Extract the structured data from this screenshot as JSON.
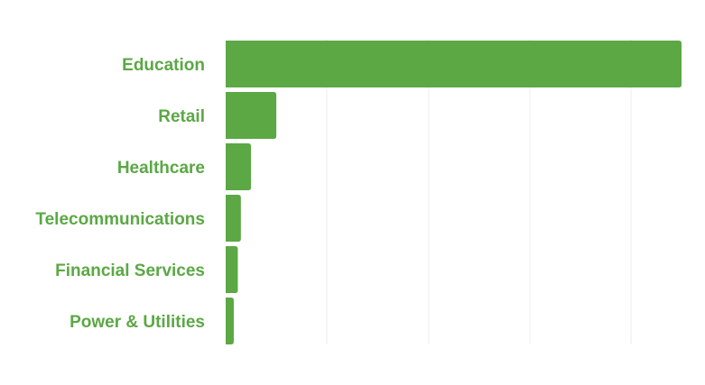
{
  "chart_data": {
    "type": "bar",
    "orientation": "horizontal",
    "categories": [
      "Education",
      "Retail",
      "Healthcare",
      "Telecommunications",
      "Financial Services",
      "Power & Utilities"
    ],
    "values": [
      450,
      50,
      25,
      15,
      12,
      8
    ],
    "xlim": [
      0,
      450
    ],
    "grid": true,
    "colors": {
      "bar": "#5ba845",
      "label": "#5ba845",
      "grid": "#ececec"
    }
  }
}
